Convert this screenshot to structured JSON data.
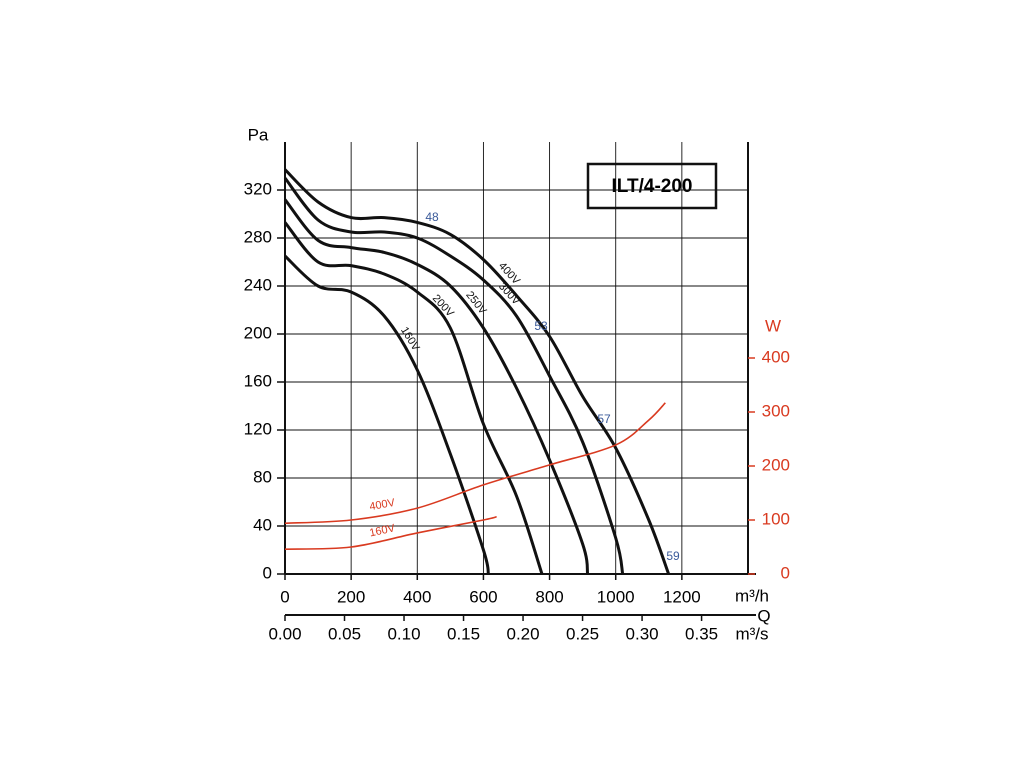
{
  "chart_data": {
    "type": "line",
    "title": "ILT/4-200",
    "y_label": "Pa",
    "y2_label": "W",
    "x_label": "m³/h",
    "x2_label": "m³/s",
    "x_axis_name": "Q",
    "xlim": [
      0,
      1400
    ],
    "xticks": [
      0,
      200,
      400,
      600,
      800,
      1000,
      1200
    ],
    "x2lim": [
      0,
      0.389
    ],
    "x2ticks": [
      {
        "value": 0,
        "label": "0.00"
      },
      0.05,
      {
        "value": 0.1,
        "label": "0.10"
      },
      0.15,
      {
        "value": 0.2,
        "label": "0.20"
      },
      0.25,
      {
        "value": 0.3,
        "label": "0.30"
      },
      0.35
    ],
    "ylim": [
      0,
      360
    ],
    "yticks": [
      0,
      40,
      80,
      120,
      160,
      200,
      240,
      280,
      320
    ],
    "y2lim": [
      0,
      800
    ],
    "y2ticks": [
      0,
      100,
      200,
      300,
      400
    ],
    "y2_color": "#d93a20",
    "grid": true,
    "series": [
      {
        "name": "400V",
        "color": "#111111",
        "x": [
          0,
          100,
          200,
          300,
          400,
          500,
          600,
          700,
          800,
          900,
          1000,
          1100,
          1160
        ],
        "values": [
          337,
          310,
          297,
          297,
          293,
          283,
          262,
          232,
          198,
          148,
          105,
          45,
          0
        ]
      },
      {
        "name": "300V",
        "color": "#111111",
        "x": [
          0,
          100,
          200,
          300,
          400,
          500,
          600,
          700,
          800,
          900,
          1000,
          1021
        ],
        "values": [
          330,
          295,
          285,
          285,
          280,
          265,
          245,
          215,
          165,
          110,
          30,
          0
        ]
      },
      {
        "name": "250V",
        "color": "#111111",
        "x": [
          0,
          100,
          200,
          300,
          400,
          500,
          600,
          700,
          800,
          900,
          915
        ],
        "values": [
          312,
          278,
          272,
          268,
          258,
          240,
          205,
          155,
          95,
          25,
          0
        ]
      },
      {
        "name": "200V",
        "color": "#111111",
        "x": [
          0,
          100,
          200,
          300,
          400,
          500,
          600,
          700,
          777
        ],
        "values": [
          293,
          260,
          257,
          250,
          235,
          205,
          125,
          65,
          0
        ]
      },
      {
        "name": "160V",
        "color": "#111111",
        "x": [
          0,
          100,
          200,
          300,
          400,
          500,
          600,
          615
        ],
        "values": [
          265,
          240,
          235,
          215,
          170,
          100,
          20,
          0
        ]
      },
      {
        "name": "400V",
        "color": "#d93a20",
        "axis": "y2",
        "x": [
          0,
          200,
          400,
          600,
          800,
          1000,
          1100,
          1150
        ],
        "values": [
          94,
          100,
          122,
          165,
          202,
          239,
          285,
          317
        ]
      },
      {
        "name": "160V",
        "color": "#d93a20",
        "axis": "y2",
        "x": [
          0,
          200,
          400,
          600,
          640
        ],
        "values": [
          46,
          50,
          76,
          100,
          106
        ]
      }
    ],
    "annotations": [
      "48",
      "53",
      "57",
      "59"
    ],
    "annotation_color": "#3a5a9a"
  }
}
